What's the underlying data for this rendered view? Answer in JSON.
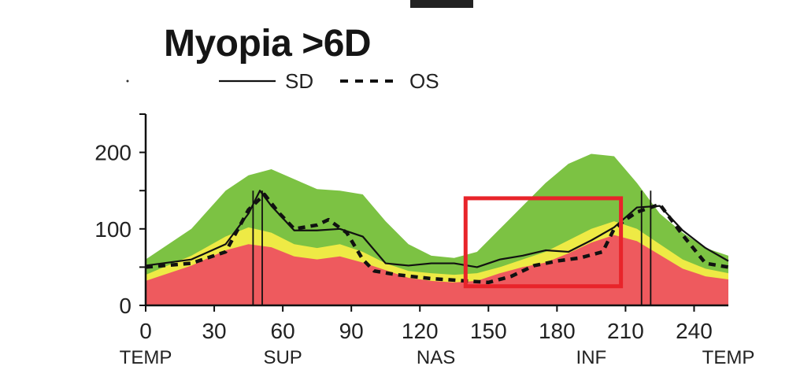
{
  "chart_data": {
    "type": "line",
    "title": "Myopia >6D",
    "xlabel": "",
    "ylabel": "",
    "xlim": [
      0,
      255
    ],
    "ylim": [
      0,
      250
    ],
    "x_ticks": [
      0,
      30,
      60,
      90,
      120,
      150,
      180,
      210,
      240
    ],
    "y_ticks": [
      0,
      100,
      200
    ],
    "regions": [
      "TEMP",
      "SUP",
      "NAS",
      "INF",
      "TEMP"
    ],
    "region_x": [
      0,
      60,
      127,
      195,
      255
    ],
    "legend": [
      "SD",
      "OS"
    ],
    "legend_position": "top-center",
    "colors": {
      "green": "#7cc243",
      "yellow": "#eeea45",
      "red": "#ee5a5e",
      "line": "#111111",
      "highlight": "#e8242a"
    },
    "bands": {
      "x": [
        0,
        20,
        35,
        45,
        55,
        65,
        75,
        85,
        95,
        105,
        115,
        125,
        135,
        145,
        155,
        165,
        175,
        185,
        195,
        205,
        215,
        225,
        235,
        245,
        255
      ],
      "green_upper": [
        60,
        100,
        150,
        170,
        178,
        165,
        152,
        150,
        145,
        110,
        80,
        65,
        62,
        70,
        100,
        130,
        160,
        185,
        198,
        195,
        160,
        120,
        95,
        75,
        65
      ],
      "yellow_upper": [
        40,
        65,
        90,
        102,
        95,
        80,
        75,
        80,
        70,
        55,
        45,
        42,
        40,
        42,
        50,
        60,
        70,
        85,
        100,
        110,
        100,
        80,
        60,
        48,
        42
      ],
      "red_upper": [
        32,
        52,
        72,
        80,
        76,
        64,
        60,
        64,
        56,
        46,
        36,
        32,
        30,
        32,
        42,
        50,
        56,
        68,
        82,
        92,
        84,
        66,
        48,
        38,
        34
      ]
    },
    "series": [
      {
        "name": "SD",
        "style": "solid",
        "x": [
          0,
          20,
          35,
          45,
          50,
          55,
          65,
          75,
          85,
          95,
          105,
          115,
          125,
          135,
          145,
          155,
          165,
          175,
          185,
          195,
          205,
          210,
          215,
          225,
          235,
          245,
          255
        ],
        "y": [
          52,
          60,
          80,
          120,
          150,
          130,
          98,
          98,
          100,
          90,
          55,
          52,
          55,
          55,
          50,
          60,
          65,
          72,
          70,
          85,
          102,
          115,
          128,
          130,
          98,
          75,
          58
        ]
      },
      {
        "name": "OS",
        "style": "dashed",
        "x": [
          0,
          20,
          35,
          45,
          52,
          58,
          65,
          75,
          80,
          88,
          95,
          100,
          110,
          125,
          140,
          150,
          160,
          170,
          180,
          190,
          200,
          205,
          210,
          215,
          225,
          235,
          245,
          255
        ],
        "y": [
          50,
          55,
          70,
          125,
          145,
          122,
          100,
          105,
          112,
          95,
          60,
          45,
          40,
          35,
          32,
          30,
          38,
          52,
          58,
          62,
          70,
          100,
          112,
          122,
          132,
          92,
          55,
          50
        ]
      }
    ],
    "highlight_box": {
      "x_range": [
        140,
        208
      ],
      "y_range": [
        25,
        140
      ]
    }
  }
}
